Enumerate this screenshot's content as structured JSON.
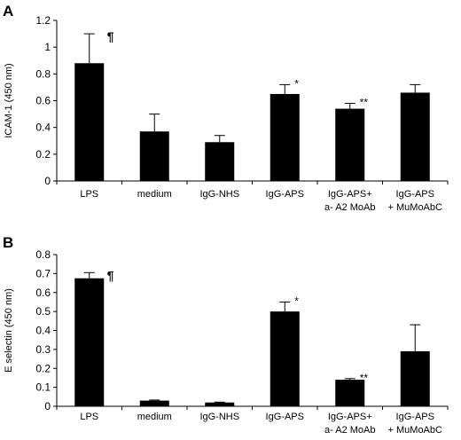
{
  "chart_data": [
    {
      "panel": "A",
      "type": "bar",
      "ylabel": "ICAM-1 (450 nm)",
      "ylim": [
        0,
        1.2
      ],
      "yticks": [
        "0",
        "0.2",
        "0.4",
        "0.6",
        "0.8",
        "1",
        "1.2"
      ],
      "categories": [
        [
          "LPS"
        ],
        [
          "medium"
        ],
        [
          "IgG-NHS"
        ],
        [
          "IgG-APS"
        ],
        [
          "IgG-APS+",
          "a- A2 MoAb"
        ],
        [
          "IgG-APS",
          "+ MuMoAbC"
        ]
      ],
      "values": [
        0.88,
        0.37,
        0.29,
        0.65,
        0.54,
        0.66
      ],
      "errors": [
        0.22,
        0.13,
        0.05,
        0.07,
        0.04,
        0.06
      ],
      "annotations": [
        "¶",
        "",
        "",
        "*",
        "**",
        ""
      ],
      "grid": false,
      "bar_color": "#000000"
    },
    {
      "panel": "B",
      "type": "bar",
      "ylabel": "E selectin  (450 nm)",
      "ylim": [
        0,
        0.8
      ],
      "yticks": [
        "0",
        "0.1",
        "0.2",
        "0.3",
        "0.4",
        "0.5",
        "0.6",
        "0.7",
        "0.8"
      ],
      "categories": [
        [
          "LPS"
        ],
        [
          "medium"
        ],
        [
          "IgG-NHS"
        ],
        [
          "IgG-APS"
        ],
        [
          "IgG-APS+",
          "a- A2 MoAb"
        ],
        [
          "IgG-APS",
          "+ MuMoAbC"
        ]
      ],
      "values": [
        0.675,
        0.03,
        0.02,
        0.5,
        0.14,
        0.29
      ],
      "errors": [
        0.03,
        0.003,
        0.002,
        0.05,
        0.006,
        0.14
      ],
      "annotations": [
        "¶",
        "",
        "",
        "*",
        "**",
        ""
      ],
      "grid": false,
      "bar_color": "#000000"
    }
  ]
}
